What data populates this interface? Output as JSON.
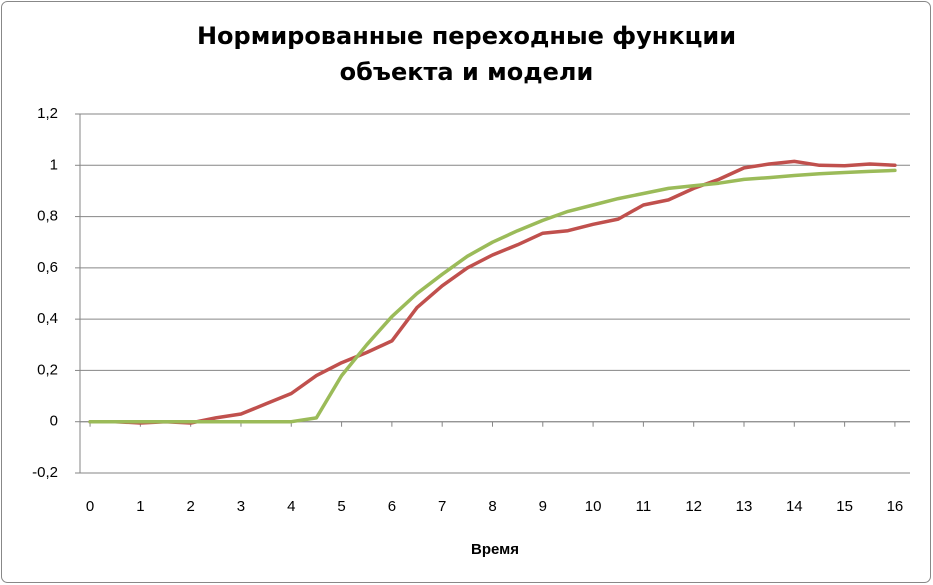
{
  "chart_data": {
    "type": "line",
    "title": "Нормированные переходные функции объекта и модели",
    "x_label": "Время",
    "x": [
      0,
      0.5,
      1,
      1.5,
      2,
      2.5,
      3,
      3.5,
      4,
      4.5,
      5,
      5.5,
      6,
      6.5,
      7,
      7.5,
      8,
      8.5,
      9,
      9.5,
      10,
      10.5,
      11,
      11.5,
      12,
      12.5,
      13,
      13.5,
      14,
      14.5,
      15,
      15.5,
      16
    ],
    "series": [
      {
        "color": "#c0504d",
        "values": [
          0,
          0,
          -0.005,
          0,
          -0.005,
          0.015,
          0.03,
          0.07,
          0.11,
          0.18,
          0.23,
          0.27,
          0.315,
          0.445,
          0.53,
          0.6,
          0.65,
          0.69,
          0.735,
          0.745,
          0.77,
          0.79,
          0.845,
          0.865,
          0.91,
          0.945,
          0.99,
          1.005,
          1.015,
          1.0,
          0.998,
          1.005,
          1.0
        ]
      },
      {
        "color": "#9bbb59",
        "values": [
          0,
          0,
          0,
          0,
          0,
          0,
          0,
          0,
          0,
          0.015,
          0.18,
          0.3,
          0.41,
          0.5,
          0.575,
          0.645,
          0.7,
          0.745,
          0.785,
          0.82,
          0.845,
          0.87,
          0.89,
          0.91,
          0.92,
          0.93,
          0.945,
          0.952,
          0.96,
          0.967,
          0.972,
          0.976,
          0.98
        ]
      }
    ],
    "xlim": [
      -0.2,
      16.3
    ],
    "xticks": [
      0,
      1,
      2,
      3,
      4,
      5,
      6,
      7,
      8,
      9,
      10,
      11,
      12,
      13,
      14,
      15,
      16
    ],
    "ylim": [
      -0.2,
      1.2
    ],
    "yticks": [
      {
        "value": -0.2,
        "label": "-0,2"
      },
      0,
      {
        "value": 0.2,
        "label": "0,2"
      },
      {
        "value": 0.4,
        "label": "0,4"
      },
      {
        "value": 0.6,
        "label": "0,6"
      },
      {
        "value": 0.8,
        "label": "0,8"
      },
      1,
      {
        "value": 1.2,
        "label": "1,2"
      }
    ],
    "grid": true
  }
}
